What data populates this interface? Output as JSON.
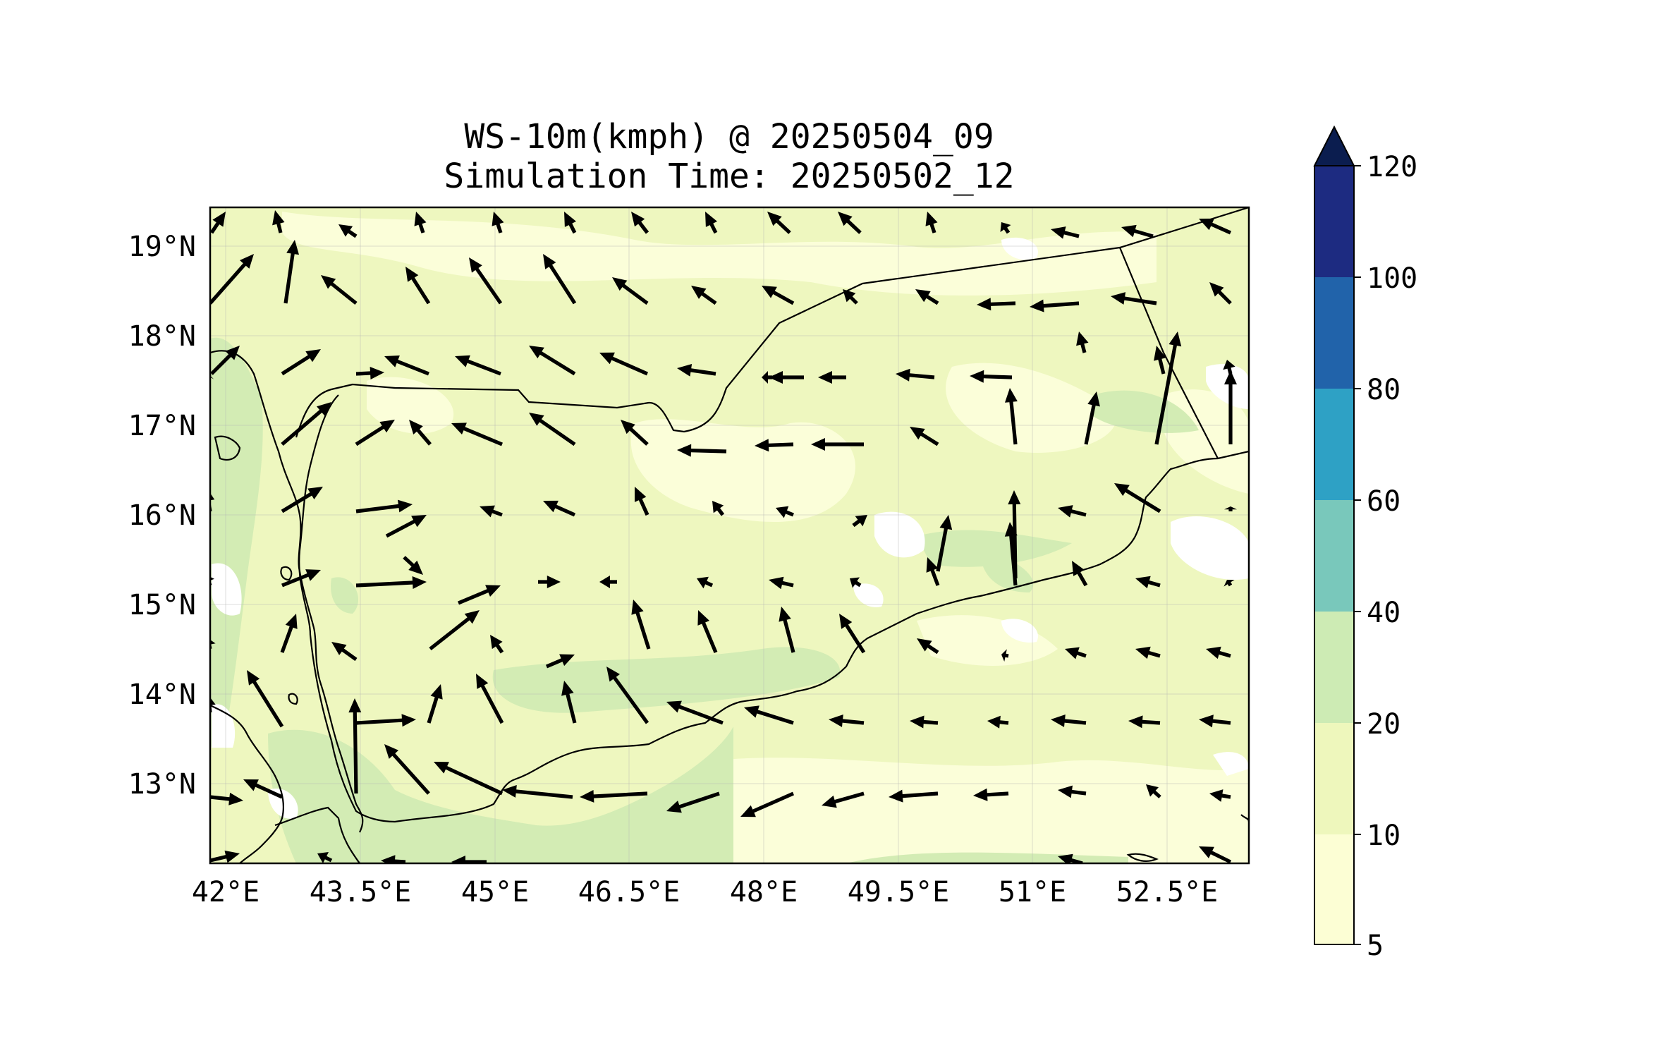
{
  "title": {
    "line1": "WS-10m(kmph) @ 20250504_09",
    "line2": "Simulation Time: 20250502_12"
  },
  "map": {
    "x_tick_labels": [
      "42°E",
      "43.5°E",
      "45°E",
      "46.5°E",
      "48°E",
      "49.5°E",
      "51°E",
      "52.5°E"
    ],
    "y_tick_labels": [
      "19°N",
      "18°N",
      "17°N",
      "16°N",
      "15°N",
      "14°N",
      "13°N"
    ],
    "grid": true,
    "vectors": "wind direction arrows (black)"
  },
  "colorbar": {
    "extend": "max",
    "levels": [
      "5",
      "10",
      "20",
      "40",
      "60",
      "80",
      "100",
      "120"
    ],
    "colors": [
      "#fcfed4",
      "#eef7bc",
      "#cdebb4",
      "#79c8bb",
      "#2ea1c5",
      "#2163aa",
      "#1d2b81"
    ],
    "extend_color": "#0b1d4f"
  },
  "field_colors": {
    "light": "#fbfedc",
    "low": "#eff8c0",
    "mid": "#d4edb5",
    "white": "#ffffff"
  }
}
